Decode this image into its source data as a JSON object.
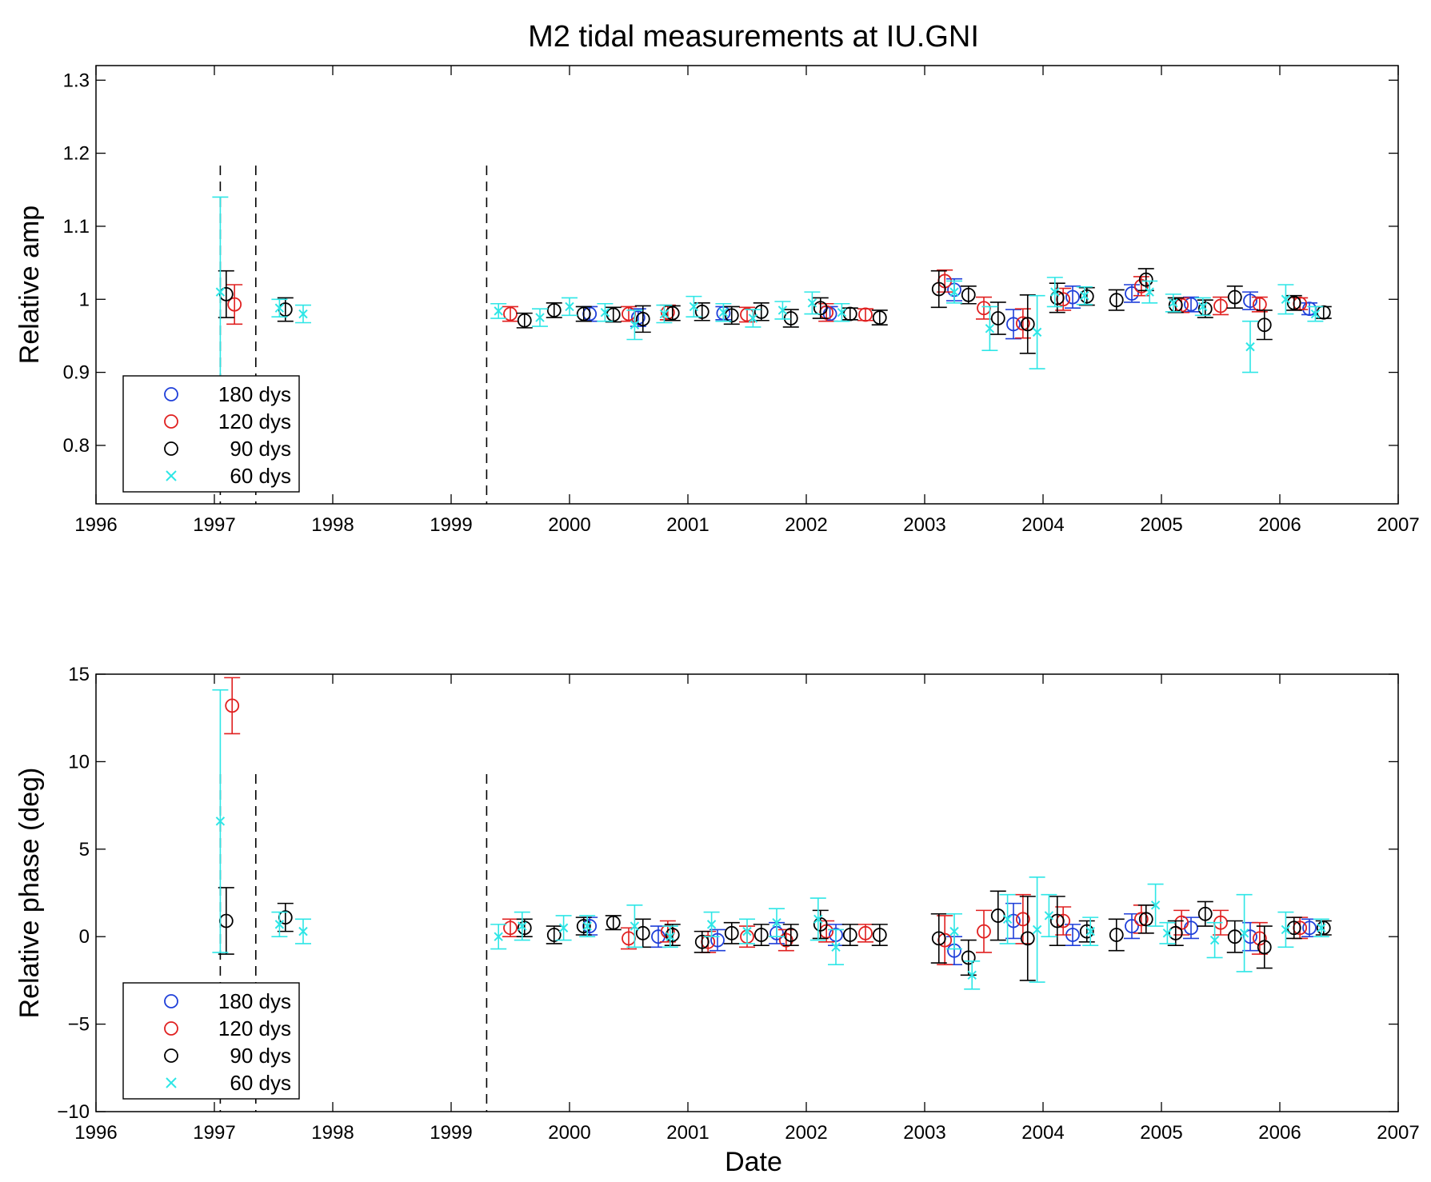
{
  "chart_data": {
    "type": "scatter",
    "title": "M2 tidal measurements at IU.GNI",
    "xlabel": "Date",
    "xlim": [
      1996,
      2007
    ],
    "xticks": [
      "1996",
      "1997",
      "1998",
      "1999",
      "2000",
      "2001",
      "2002",
      "2003",
      "2004",
      "2005",
      "2006",
      "2007"
    ],
    "event_lines_x": [
      1997.05,
      1997.35,
      1999.3
    ],
    "colors": {
      "180 dys": "#1f3fd9",
      "120 dys": "#e02020",
      "90 dys": "#000000",
      "60 dys": "#2ee6e6"
    },
    "legend": {
      "location": "lower-left",
      "entries": [
        "180 dys",
        "120 dys",
        "90 dys",
        "60 dys"
      ]
    },
    "panels": [
      {
        "ylabel": "Relative amp",
        "ylim": [
          0.72,
          1.32
        ],
        "yticks": [
          "0.8",
          "0.9",
          "1",
          "1.1",
          "1.2",
          "1.3"
        ],
        "series": [
          {
            "name": "180 dys",
            "marker": "o",
            "points": [
              [
                2000.17,
                0.98,
                0.01
              ],
              [
                2000.58,
                0.975,
                0.012
              ],
              [
                2001.3,
                0.981,
                0.009
              ],
              [
                2002.2,
                0.98,
                0.01
              ],
              [
                2003.25,
                1.013,
                0.015
              ],
              [
                2003.75,
                0.966,
                0.02
              ],
              [
                2004.25,
                1.003,
                0.015
              ],
              [
                2004.75,
                1.008,
                0.012
              ],
              [
                2005.25,
                0.993,
                0.01
              ],
              [
                2005.75,
                0.998,
                0.012
              ],
              [
                2006.25,
                0.987,
                0.008
              ]
            ]
          },
          {
            "name": "120 dys",
            "marker": "o",
            "points": [
              [
                1997.17,
                0.993,
                0.027
              ],
              [
                1999.5,
                0.98,
                0.01
              ],
              [
                2000.5,
                0.98,
                0.01
              ],
              [
                2000.83,
                0.982,
                0.01
              ],
              [
                2001.5,
                0.979,
                0.01
              ],
              [
                2002.17,
                0.982,
                0.012
              ],
              [
                2002.5,
                0.979,
                0.008
              ],
              [
                2003.17,
                1.025,
                0.015
              ],
              [
                2003.5,
                0.988,
                0.015
              ],
              [
                2003.83,
                0.967,
                0.02
              ],
              [
                2004.17,
                1.0,
                0.015
              ],
              [
                2004.83,
                1.018,
                0.013
              ],
              [
                2005.17,
                0.992,
                0.01
              ],
              [
                2005.5,
                0.991,
                0.012
              ],
              [
                2005.83,
                0.993,
                0.01
              ],
              [
                2006.17,
                0.994,
                0.008
              ]
            ]
          },
          {
            "name": "90 dys",
            "marker": "o",
            "points": [
              [
                1997.1,
                1.007,
                0.032
              ],
              [
                1997.6,
                0.986,
                0.016
              ],
              [
                1999.62,
                0.971,
                0.01
              ],
              [
                1999.87,
                0.985,
                0.01
              ],
              [
                2000.12,
                0.98,
                0.01
              ],
              [
                2000.37,
                0.979,
                0.01
              ],
              [
                2000.62,
                0.973,
                0.018
              ],
              [
                2000.87,
                0.981,
                0.01
              ],
              [
                2001.12,
                0.983,
                0.012
              ],
              [
                2001.37,
                0.978,
                0.012
              ],
              [
                2001.62,
                0.983,
                0.012
              ],
              [
                2001.87,
                0.974,
                0.012
              ],
              [
                2002.12,
                0.988,
                0.014
              ],
              [
                2002.37,
                0.98,
                0.008
              ],
              [
                2002.62,
                0.975,
                0.01
              ],
              [
                2003.12,
                1.014,
                0.025
              ],
              [
                2003.37,
                1.006,
                0.012
              ],
              [
                2003.62,
                0.974,
                0.022
              ],
              [
                2003.87,
                0.966,
                0.04
              ],
              [
                2004.12,
                1.002,
                0.02
              ],
              [
                2004.37,
                1.004,
                0.012
              ],
              [
                2004.62,
                0.999,
                0.014
              ],
              [
                2004.87,
                1.027,
                0.015
              ],
              [
                2005.12,
                0.992,
                0.01
              ],
              [
                2005.37,
                0.987,
                0.012
              ],
              [
                2005.62,
                1.003,
                0.015
              ],
              [
                2005.87,
                0.965,
                0.02
              ],
              [
                2006.12,
                0.995,
                0.01
              ],
              [
                2006.37,
                0.982,
                0.008
              ]
            ]
          },
          {
            "name": "60 dys",
            "marker": "x",
            "points": [
              [
                1997.05,
                1.01,
                0.13
              ],
              [
                1997.55,
                0.988,
                0.012
              ],
              [
                1997.75,
                0.98,
                0.012
              ],
              [
                1999.4,
                0.984,
                0.01
              ],
              [
                1999.75,
                0.975,
                0.012
              ],
              [
                2000.0,
                0.99,
                0.012
              ],
              [
                2000.3,
                0.982,
                0.012
              ],
              [
                2000.55,
                0.965,
                0.02
              ],
              [
                2000.8,
                0.98,
                0.012
              ],
              [
                2001.05,
                0.99,
                0.014
              ],
              [
                2001.3,
                0.982,
                0.012
              ],
              [
                2001.55,
                0.974,
                0.012
              ],
              [
                2001.8,
                0.985,
                0.012
              ],
              [
                2002.05,
                0.995,
                0.015
              ],
              [
                2002.3,
                0.982,
                0.012
              ],
              [
                2003.25,
                1.01,
                0.015
              ],
              [
                2003.55,
                0.96,
                0.03
              ],
              [
                2003.95,
                0.955,
                0.05
              ],
              [
                2004.1,
                1.01,
                0.02
              ],
              [
                2004.35,
                1.005,
                0.012
              ],
              [
                2004.9,
                1.01,
                0.015
              ],
              [
                2005.1,
                0.995,
                0.012
              ],
              [
                2005.35,
                0.99,
                0.012
              ],
              [
                2005.75,
                0.935,
                0.035
              ],
              [
                2006.05,
                1.0,
                0.02
              ],
              [
                2006.3,
                0.98,
                0.01
              ]
            ]
          }
        ]
      },
      {
        "ylabel": "Relative phase (deg)",
        "ylim": [
          -10,
          15
        ],
        "yticks": [
          "−10",
          "−5",
          "0",
          "5",
          "10",
          "15"
        ],
        "series": [
          {
            "name": "180 dys",
            "marker": "o",
            "points": [
              [
                2000.17,
                0.6,
                0.5
              ],
              [
                2000.75,
                0.0,
                0.6
              ],
              [
                2001.25,
                -0.2,
                0.6
              ],
              [
                2001.75,
                0.2,
                0.6
              ],
              [
                2002.25,
                0.1,
                0.6
              ],
              [
                2003.25,
                -0.8,
                0.8
              ],
              [
                2003.75,
                0.9,
                1.0
              ],
              [
                2004.25,
                0.1,
                0.6
              ],
              [
                2004.75,
                0.6,
                0.7
              ],
              [
                2005.25,
                0.5,
                0.6
              ],
              [
                2005.75,
                0.0,
                0.8
              ],
              [
                2006.25,
                0.5,
                0.5
              ]
            ]
          },
          {
            "name": "120 dys",
            "marker": "o",
            "points": [
              [
                1997.15,
                13.2,
                1.6
              ],
              [
                1999.5,
                0.5,
                0.5
              ],
              [
                2000.5,
                -0.1,
                0.6
              ],
              [
                2000.83,
                0.3,
                0.6
              ],
              [
                2001.17,
                -0.3,
                0.6
              ],
              [
                2001.5,
                0.0,
                0.6
              ],
              [
                2001.83,
                -0.2,
                0.6
              ],
              [
                2002.17,
                0.3,
                0.6
              ],
              [
                2002.5,
                0.2,
                0.5
              ],
              [
                2003.17,
                -0.2,
                1.4
              ],
              [
                2003.5,
                0.3,
                1.2
              ],
              [
                2003.83,
                1.0,
                1.4
              ],
              [
                2004.17,
                0.9,
                0.8
              ],
              [
                2004.83,
                1.0,
                0.8
              ],
              [
                2005.17,
                0.8,
                0.7
              ],
              [
                2005.5,
                0.8,
                0.7
              ],
              [
                2005.83,
                -0.1,
                0.9
              ],
              [
                2006.17,
                0.5,
                0.6
              ]
            ]
          },
          {
            "name": "90 dys",
            "marker": "o",
            "points": [
              [
                1997.1,
                0.9,
                1.9
              ],
              [
                1997.6,
                1.1,
                0.8
              ],
              [
                1999.62,
                0.5,
                0.5
              ],
              [
                1999.87,
                0.1,
                0.5
              ],
              [
                2000.12,
                0.6,
                0.5
              ],
              [
                2000.37,
                0.8,
                0.4
              ],
              [
                2000.62,
                0.2,
                0.8
              ],
              [
                2000.87,
                0.1,
                0.6
              ],
              [
                2001.12,
                -0.3,
                0.6
              ],
              [
                2001.37,
                0.2,
                0.6
              ],
              [
                2001.62,
                0.1,
                0.6
              ],
              [
                2001.87,
                0.1,
                0.6
              ],
              [
                2002.12,
                0.7,
                0.8
              ],
              [
                2002.37,
                0.1,
                0.6
              ],
              [
                2002.62,
                0.1,
                0.6
              ],
              [
                2003.12,
                -0.1,
                1.4
              ],
              [
                2003.37,
                -1.2,
                1.0
              ],
              [
                2003.62,
                1.2,
                1.4
              ],
              [
                2003.87,
                -0.1,
                2.4
              ],
              [
                2004.12,
                0.9,
                1.4
              ],
              [
                2004.37,
                0.3,
                0.6
              ],
              [
                2004.62,
                0.1,
                0.9
              ],
              [
                2004.87,
                1.0,
                0.8
              ],
              [
                2005.12,
                0.2,
                0.7
              ],
              [
                2005.37,
                1.3,
                0.7
              ],
              [
                2005.62,
                0.0,
                0.9
              ],
              [
                2005.87,
                -0.6,
                1.2
              ],
              [
                2006.12,
                0.5,
                0.6
              ],
              [
                2006.37,
                0.5,
                0.4
              ]
            ]
          },
          {
            "name": "60 dys",
            "marker": "x",
            "points": [
              [
                1997.05,
                6.6,
                7.5
              ],
              [
                1997.55,
                0.7,
                0.7
              ],
              [
                1997.75,
                0.3,
                0.7
              ],
              [
                1999.4,
                0.0,
                0.7
              ],
              [
                1999.6,
                0.6,
                0.8
              ],
              [
                1999.95,
                0.5,
                0.7
              ],
              [
                2000.15,
                0.6,
                0.6
              ],
              [
                2000.55,
                0.6,
                1.2
              ],
              [
                2000.85,
                0.0,
                0.6
              ],
              [
                2001.2,
                0.7,
                0.7
              ],
              [
                2001.5,
                0.3,
                0.7
              ],
              [
                2001.75,
                0.8,
                0.8
              ],
              [
                2002.1,
                1.0,
                1.2
              ],
              [
                2002.25,
                -0.6,
                1.0
              ],
              [
                2003.25,
                0.3,
                1.0
              ],
              [
                2003.4,
                -2.2,
                0.8
              ],
              [
                2003.7,
                1.0,
                1.4
              ],
              [
                2003.95,
                0.4,
                3.0
              ],
              [
                2004.05,
                1.2,
                1.2
              ],
              [
                2004.4,
                0.3,
                0.8
              ],
              [
                2004.95,
                1.8,
                1.2
              ],
              [
                2005.05,
                0.2,
                0.6
              ],
              [
                2005.45,
                -0.2,
                1.0
              ],
              [
                2005.7,
                0.2,
                2.2
              ],
              [
                2006.05,
                0.4,
                1.0
              ],
              [
                2006.35,
                0.5,
                0.5
              ]
            ]
          }
        ]
      }
    ]
  }
}
